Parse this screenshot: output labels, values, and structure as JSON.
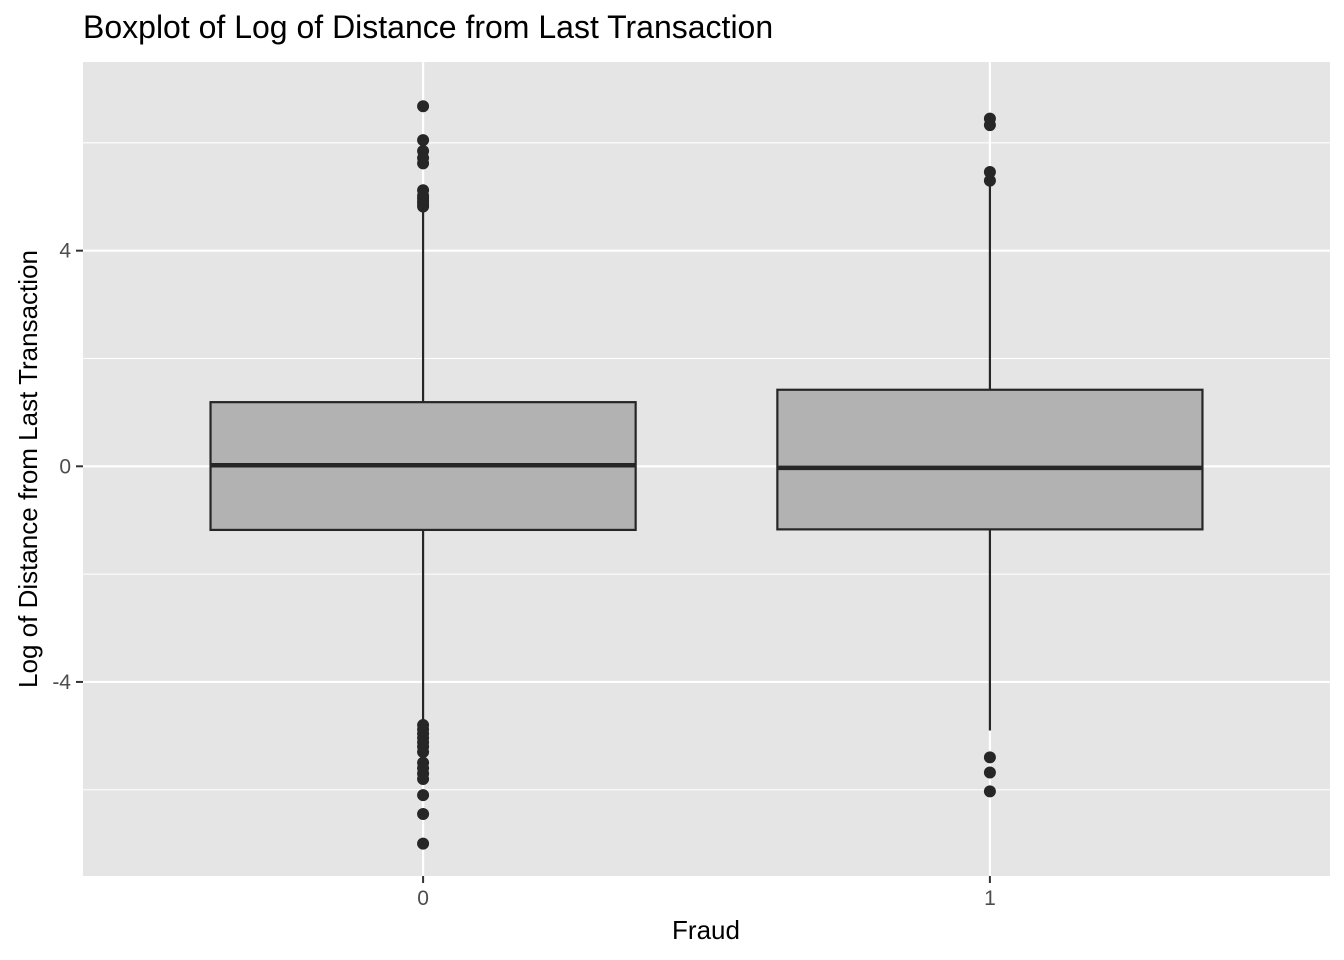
{
  "chart_data": {
    "type": "boxplot",
    "title": "Boxplot of Log of Distance from Last Transaction",
    "xlabel": "Fraud",
    "ylabel": "Log of Distance from Last Transaction",
    "categories": [
      "0",
      "1"
    ],
    "ylim": [
      -7.6,
      7.5
    ],
    "y_ticks": [
      -4,
      0,
      4
    ],
    "y_tick_labels": [
      "-4",
      "0",
      "4"
    ],
    "grid": true,
    "colors": {
      "panel": "#e5e5e5",
      "grid": "#ffffff",
      "box_fill": "#b2b2b2",
      "box_stroke": "#262626",
      "outlier": "#262626",
      "tick_label": "#4d4d4d"
    },
    "boxes": [
      {
        "category": "0",
        "lower_whisker": -4.85,
        "q1": -1.18,
        "median": 0.02,
        "q3": 1.19,
        "upper_whisker": 4.82,
        "outliers": [
          6.68,
          6.05,
          5.85,
          5.72,
          5.62,
          5.12,
          5.02,
          4.97,
          4.92,
          4.87,
          4.82,
          -4.8,
          -4.88,
          -4.96,
          -5.04,
          -5.12,
          -5.2,
          -5.3,
          -5.5,
          -5.6,
          -5.7,
          -5.8,
          -6.1,
          -6.45,
          -7.0
        ]
      },
      {
        "category": "1",
        "lower_whisker": -4.9,
        "q1": -1.17,
        "median": -0.03,
        "q3": 1.42,
        "upper_whisker": 5.3,
        "outliers": [
          6.45,
          6.33,
          5.46,
          5.3,
          -5.4,
          -5.68,
          -6.03
        ]
      }
    ]
  }
}
